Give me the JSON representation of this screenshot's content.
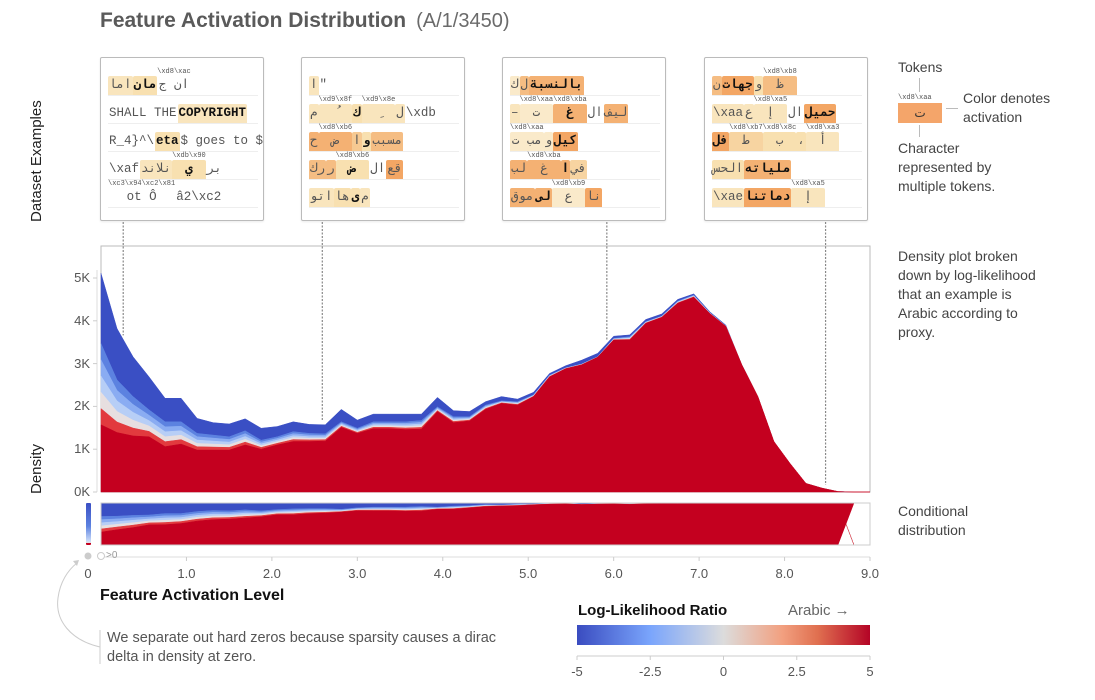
{
  "title": "Feature Activation Distribution",
  "subtitle": "(A/1/3450)",
  "dataset_examples_label": "Dataset Examples",
  "density_label": "Density",
  "colors": {
    "arabic_red": "#c4001f",
    "non_arabic_blue": "#3a4fc4",
    "token_low": "#f8e0b0",
    "token_high": "#f29a55",
    "colormap": [
      "#3a4cc0",
      "#7aa5fc",
      "#dcdcdc",
      "#f2a080",
      "#e07050",
      "#b40426"
    ]
  },
  "examples": [
    {
      "rows": [
        [
          {
            "t": "اما",
            "a": 0.25
          },
          {
            "t": "مان",
            "a": 0.3,
            "b": true
          },
          {
            "t": "ان ج",
            "a": 0,
            "sup": "\\xd8\\xac"
          }
        ],
        [
          {
            "t": "SHALL THE ",
            "a": 0
          },
          {
            "t": "COPYRIGHT",
            "a": 0.25,
            "b": true
          }
        ],
        [
          {
            "t": "R_4}^\\",
            "a": 0
          },
          {
            "t": "eta",
            "a": 0.3,
            "b": true
          },
          {
            "t": "$ goes to $",
            "a": 0
          }
        ],
        [
          {
            "t": "\\xaf",
            "a": 0
          },
          {
            "t": "نلاند",
            "a": 0.25
          },
          {
            "t": "ي",
            "a": 0.3,
            "b": true,
            "sup": "\\xdb\\x90"
          },
          {
            "t": "بر",
            "a": 0
          }
        ],
        [
          {
            "t": "ot Ô",
            "a": 0,
            "sup": "\\xc3\\x94\\xc2\\x81"
          },
          {
            "t": "   â2\\xc2",
            "a": 0
          }
        ]
      ]
    },
    {
      "rows": [
        [
          {
            "t": "ا",
            "a": 0.25
          },
          {
            "t": "\"",
            "a": 0
          }
        ],
        [
          {
            "t": "م",
            "a": 0.25
          },
          {
            "t": "ُ",
            "a": 0.25,
            "sup": "\\xd9\\x8f"
          },
          {
            "t": "ك",
            "a": 0.3,
            "b": true
          },
          {
            "t": "ِ",
            "a": 0.25,
            "sup": "\\xd9\\x8e"
          },
          {
            "t": "ل",
            "a": 0.25
          },
          {
            "t": "\\xdb",
            "a": 0
          }
        ],
        [
          {
            "t": "ح",
            "a": 0.5
          },
          {
            "t": "ض",
            "a": 0.5,
            "sup": "\\xd8\\xb6"
          },
          {
            "t": "ا",
            "a": 0.4
          },
          {
            "t": "و",
            "a": 0.3,
            "b": true
          },
          {
            "t": "مسبب",
            "a": 0.45
          }
        ],
        [
          {
            "t": "رك",
            "a": 0.45
          },
          {
            "t": "ر",
            "a": 0.45
          },
          {
            "t": "ض",
            "a": 0.3,
            "b": true,
            "sup": "\\xd8\\xb6"
          },
          {
            "t": "ال",
            "a": 0
          },
          {
            "t": "قع",
            "a": 0.55
          }
        ],
        [
          {
            "t": "اتو",
            "a": 0.25
          },
          {
            "t": "ها",
            "a": 0.3
          },
          {
            "t": "ى",
            "a": 0.3,
            "b": true
          },
          {
            "t": "م",
            "a": 0.25
          }
        ]
      ]
    },
    {
      "rows": [
        [
          {
            "t": "ك",
            "a": 0.2
          },
          {
            "t": "ل",
            "a": 0.45
          },
          {
            "t": "بالنسبة",
            "a": 0.5,
            "b": true
          }
        ],
        [
          {
            "t": "–",
            "a": 0.25
          },
          {
            "t": "ت",
            "a": 0.2,
            "sup": "\\xd8\\xaa"
          },
          {
            "t": "غ",
            "a": 0.5,
            "b": true,
            "sup": "\\xd8\\xba"
          },
          {
            "t": "ال",
            "a": 0
          },
          {
            "t": "ليف",
            "a": 0.5
          }
        ],
        [
          {
            "t": "مب ت",
            "a": 0.2,
            "sup": "\\xd8\\xaa"
          },
          {
            "t": "و",
            "a": 0.2
          },
          {
            "t": "كيل",
            "a": 0.55,
            "b": true
          }
        ],
        [
          {
            "t": "لب",
            "a": 0.5
          },
          {
            "t": "غ",
            "a": 0.5,
            "sup": "\\xd8\\xba"
          },
          {
            "t": "ا",
            "a": 0.5,
            "b": true
          },
          {
            "t": "في",
            "a": 0.35
          }
        ],
        [
          {
            "t": "موق",
            "a": 0.5
          },
          {
            "t": "لى",
            "a": 0.5,
            "b": true
          },
          {
            "t": "ع",
            "a": 0.2,
            "sup": "\\xd8\\xb9"
          },
          {
            "t": "نا",
            "a": 0.55
          }
        ]
      ]
    },
    {
      "rows": [
        [
          {
            "t": "ن",
            "a": 0.45
          },
          {
            "t": "جهات",
            "a": 0.55,
            "b": true
          },
          {
            "t": "و",
            "a": 0.3
          },
          {
            "t": "ظ",
            "a": 0.45,
            "sup": "\\xd8\\xb8"
          }
        ],
        [
          {
            "t": "\\xaa",
            "a": 0.25
          },
          {
            "t": "ع",
            "a": 0.25
          },
          {
            "t": "إ",
            "a": 0.25,
            "sup": "\\xd8\\xa5"
          },
          {
            "t": "ال",
            "a": 0
          },
          {
            "t": "حميل",
            "a": 0.55,
            "b": true
          }
        ],
        [
          {
            "t": "فل",
            "a": 0.55,
            "b": true
          },
          {
            "t": "ط",
            "a": 0.35,
            "sup": "\\xd8\\xb7"
          },
          {
            "t": "ب",
            "a": 0.3,
            "sup": "\\xd8\\x8c"
          },
          {
            "t": "،",
            "a": 0.3
          },
          {
            "t": "أ",
            "a": 0.25,
            "sup": "\\xd8\\xa3"
          }
        ],
        [
          {
            "t": "الحس",
            "a": 0.3
          },
          {
            "t": "ملياته",
            "a": 0.5,
            "b": true
          }
        ],
        [
          {
            "t": "\\xae",
            "a": 0.25
          },
          {
            "t": "دماتنا",
            "a": 0.55,
            "b": true
          },
          {
            "t": "إ",
            "a": 0.25,
            "sup": "\\xd8\\xa5"
          }
        ]
      ]
    }
  ],
  "token_legend": {
    "tokens_label": "Tokens",
    "sample_sup": "\\xd8\\xaa",
    "sample_char": "ت",
    "color_label": "Color denotes activation",
    "multi_label": "Character represented by multiple tokens."
  },
  "annotations": {
    "density_note": "Density plot broken down by log-likelihood that an example is Arabic according to proxy.",
    "conditional_note": "Conditional distribution",
    "zero_note": "We separate out hard zeros because sparsity causes a dirac delta in density at zero.",
    "gt_zero_label": ">0"
  },
  "chart_data": {
    "type": "area",
    "stacked": true,
    "xlabel": "Feature Activation Level",
    "ylabel": "Density",
    "xlim": [
      0,
      9
    ],
    "ylim": [
      0,
      5.7
    ],
    "x_tick_labels": [
      "0",
      "1.0",
      "2.0",
      "3.0",
      "4.0",
      "5.0",
      "6.0",
      "7.0",
      "8.0",
      "9.0"
    ],
    "x_ticks": [
      0,
      1,
      2,
      3,
      4,
      5,
      6,
      7,
      8,
      9
    ],
    "y_tick_labels": [
      "0K",
      "1K",
      "2K",
      "3K",
      "4K",
      "5K"
    ],
    "y_ticks": [
      0,
      1,
      2,
      3,
      4,
      5
    ],
    "y_unit": "thousands",
    "example_activations": [
      0.26,
      2.59,
      5.92,
      8.48
    ],
    "zero_bin_red_fraction": 0.05,
    "x": [
      0,
      0.1875,
      0.375,
      0.5625,
      0.75,
      0.9375,
      1.125,
      1.3125,
      1.5,
      1.6875,
      1.875,
      2.0625,
      2.25,
      2.4375,
      2.625,
      2.8125,
      3,
      3.1875,
      3.375,
      3.5625,
      3.75,
      3.9375,
      4.125,
      4.3125,
      4.5,
      4.6875,
      4.875,
      5.0625,
      5.25,
      5.4375,
      5.625,
      5.8125,
      6,
      6.1875,
      6.375,
      6.5625,
      6.75,
      6.9375,
      7.125,
      7.3125,
      7.5,
      7.6875,
      7.875,
      8.0625,
      8.25,
      8.4375,
      8.625,
      8.8125,
      9
    ],
    "series": [
      {
        "llr": 5,
        "values": [
          1.57,
          1.39,
          1.31,
          1.29,
          1.06,
          1.12,
          0.98,
          0.98,
          0.98,
          1.1,
          1.0,
          1.1,
          1.18,
          1.18,
          1.19,
          1.51,
          1.37,
          1.48,
          1.48,
          1.46,
          1.47,
          1.88,
          1.62,
          1.66,
          1.93,
          2.07,
          2.03,
          2.23,
          2.69,
          2.88,
          2.97,
          3.15,
          3.55,
          3.55,
          3.94,
          4.08,
          4.41,
          4.55,
          4.17,
          3.87,
          2.97,
          2.23,
          1.18,
          0.67,
          0.2,
          0.09,
          0.01,
          0,
          0
        ]
      },
      {
        "llr": 0,
        "values": [
          1.9,
          1.23,
          0.92,
          0.63,
          0.58,
          0.52,
          0.39,
          0.35,
          0.31,
          0.33,
          0.21,
          0.19,
          0.23,
          0.19,
          0.17,
          0.13,
          0.12,
          0.16,
          0.16,
          0.18,
          0.2,
          0.11,
          0.14,
          0.1,
          0.1,
          0.06,
          0.08,
          0.04,
          0.04,
          0.02,
          0.02,
          0.01,
          0.04,
          0.08,
          0.04,
          0.03,
          0.05,
          0.05,
          0.02,
          0.01,
          0,
          0,
          0,
          0,
          0,
          0,
          0,
          0,
          0
        ]
      },
      {
        "llr": -5,
        "values": [
          1.64,
          1.2,
          0.93,
          0.77,
          0.55,
          0.55,
          0.35,
          0.29,
          0.3,
          0.28,
          0.28,
          0.24,
          0.23,
          0.21,
          0.21,
          0.29,
          0.19,
          0.18,
          0.18,
          0.18,
          0.15,
          0.22,
          0.14,
          0.12,
          0.08,
          0.1,
          0.06,
          0.06,
          0.04,
          0.05,
          0.09,
          0.08,
          0.05,
          0.04,
          0.05,
          0.05,
          0.04,
          0.03,
          0.02,
          0.02,
          0,
          0,
          0,
          0,
          0,
          0,
          0,
          0,
          0
        ]
      }
    ],
    "colorbar": {
      "title": "Log-Likelihood Ratio",
      "direction_label": "Arabic →",
      "range": [
        -5,
        5
      ],
      "tick_labels": [
        "-5",
        "-2.5",
        "0",
        "2.5",
        "5"
      ],
      "ticks": [
        -5,
        -2.5,
        0,
        2.5,
        5
      ]
    }
  }
}
